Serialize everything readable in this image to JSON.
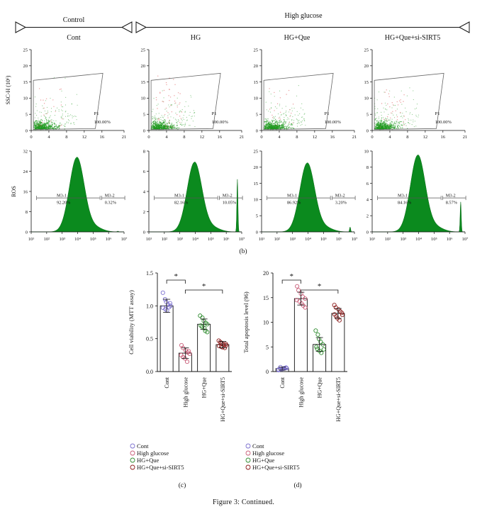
{
  "figure": {
    "caption": "Figure 3: Continued.",
    "header": {
      "control": "Control",
      "high_glucose": "High glucose",
      "groups": [
        "Cont",
        "HG",
        "HG+Que",
        "HG+Que+si-SIRT5"
      ]
    },
    "panel_b_label": "(b)",
    "panel_c_label": "(c)",
    "panel_d_label": "(d)"
  },
  "chart_data": [
    {
      "id": "scatter_row",
      "type": "scatter",
      "ylabel": "SSC-H (10⁶)",
      "xlim": [
        0,
        21
      ],
      "ylim": [
        0,
        25
      ],
      "x_ticks": [
        "0",
        "4",
        "8",
        "12",
        "16",
        "21"
      ],
      "y_ticks": [
        "0",
        "5",
        "10",
        "15",
        "20",
        "25"
      ],
      "gate_name": "P1",
      "panels": [
        {
          "group": "Cont",
          "gate_percent": "100.00%"
        },
        {
          "group": "HG",
          "gate_percent": "100.00%"
        },
        {
          "group": "HG+Que",
          "gate_percent": "100.00%"
        },
        {
          "group": "HG+Que+si-SIRT5",
          "gate_percent": "100.00%"
        }
      ]
    },
    {
      "id": "histogram_row",
      "type": "area",
      "ylabel": "ROS",
      "x_scale": "log",
      "x_ticks": [
        "10¹",
        "10²",
        "10³",
        "10⁴",
        "10⁵",
        "10⁶",
        "10⁷"
      ],
      "gate_left": "M3-1",
      "gate_right": "M3-2",
      "color": "#0b8a1e",
      "panels": [
        {
          "group": "Cont",
          "y_ticks": [
            "0",
            "8",
            "16",
            "24",
            "32"
          ],
          "ymax": 32,
          "peak_height": 29.5,
          "left_pct": "92.20%",
          "right_pct": "0.32%",
          "right_spike": 0
        },
        {
          "group": "HG",
          "y_ticks": [
            "0",
            "2",
            "4",
            "6",
            "8"
          ],
          "ymax": 8,
          "peak_height": 6.9,
          "left_pct": "82.16%",
          "right_pct": "10.05%",
          "right_spike": 5.2
        },
        {
          "group": "HG+Que",
          "y_ticks": [
            "0",
            "5",
            "10",
            "15",
            "20",
            "25"
          ],
          "ymax": 25,
          "peak_height": 21.3,
          "left_pct": "86.92%",
          "right_pct": "3.20%",
          "right_spike": 1.5
        },
        {
          "group": "HG+Que+si-SIRT5",
          "y_ticks": [
            "0",
            "2",
            "4",
            "6",
            "8",
            "10"
          ],
          "ymax": 10,
          "peak_height": 9.5,
          "left_pct": "84.16%",
          "right_pct": "8.57%",
          "right_spike": 3.7
        }
      ]
    },
    {
      "id": "panel_c",
      "type": "bar",
      "categories": [
        "Cont",
        "High glucose",
        "HG+Que",
        "HG+Que+si-SIRT5"
      ],
      "values": [
        1.0,
        0.28,
        0.72,
        0.41
      ],
      "errors": [
        0.1,
        0.08,
        0.08,
        0.05
      ],
      "points": [
        [
          1.2,
          1.1,
          1.06,
          1.02,
          1.0,
          0.97,
          0.95,
          0.93,
          0.98,
          1.04
        ],
        [
          0.4,
          0.36,
          0.32,
          0.29,
          0.27,
          0.25,
          0.22,
          0.2,
          0.15,
          0.31
        ],
        [
          0.85,
          0.82,
          0.77,
          0.74,
          0.72,
          0.7,
          0.68,
          0.66,
          0.62,
          0.6
        ],
        [
          0.47,
          0.45,
          0.43,
          0.41,
          0.4,
          0.39,
          0.38,
          0.37,
          0.36,
          0.42
        ]
      ],
      "point_colors": [
        "#7b6fcf",
        "#c95d78",
        "#2e8b2e",
        "#8b1a1a"
      ],
      "ylabel": "Cell viability (MTT assay)",
      "ylim": [
        0,
        1.5
      ],
      "y_ticks": [
        "0.0",
        "0.5",
        "1.0",
        "1.5"
      ],
      "significance": [
        {
          "from": 0,
          "to": 1,
          "label": "*"
        },
        {
          "from": 1,
          "to": 3,
          "label": "*"
        }
      ],
      "legend": [
        "Cont",
        "High glucose",
        "HG+Que",
        "HG+Que+si-SIRT5"
      ]
    },
    {
      "id": "panel_d",
      "type": "bar",
      "categories": [
        "Cont",
        "High glucose",
        "HG+Que",
        "HG+Que+si-SIRT5"
      ],
      "values": [
        0.6,
        14.8,
        5.5,
        11.8
      ],
      "errors": [
        0.3,
        1.3,
        1.4,
        1.0
      ],
      "points": [
        [
          0.3,
          0.5,
          0.6,
          0.7,
          0.8,
          0.4,
          0.9,
          0.5,
          0.6,
          0.7
        ],
        [
          17.3,
          16.5,
          15.8,
          15.2,
          14.8,
          14.5,
          14.2,
          13.8,
          13.4,
          13.0
        ],
        [
          8.3,
          7.5,
          6.6,
          6.0,
          5.5,
          5.0,
          4.6,
          4.2,
          3.8,
          4.5
        ],
        [
          13.5,
          13.0,
          12.6,
          12.2,
          11.9,
          11.6,
          11.2,
          10.8,
          10.4,
          11.5
        ]
      ],
      "point_colors": [
        "#7b6fcf",
        "#c95d78",
        "#2e8b2e",
        "#8b1a1a"
      ],
      "ylabel": "Total apoptosis level (96)",
      "ylim": [
        0,
        20
      ],
      "y_ticks": [
        "0",
        "5",
        "10",
        "15",
        "20"
      ],
      "significance": [
        {
          "from": 0,
          "to": 1,
          "label": "*"
        },
        {
          "from": 1,
          "to": 3,
          "label": "*"
        }
      ],
      "legend": [
        "Cont",
        "High glucose",
        "HG+Que",
        "HG+Que+si-SIRT5"
      ]
    }
  ]
}
